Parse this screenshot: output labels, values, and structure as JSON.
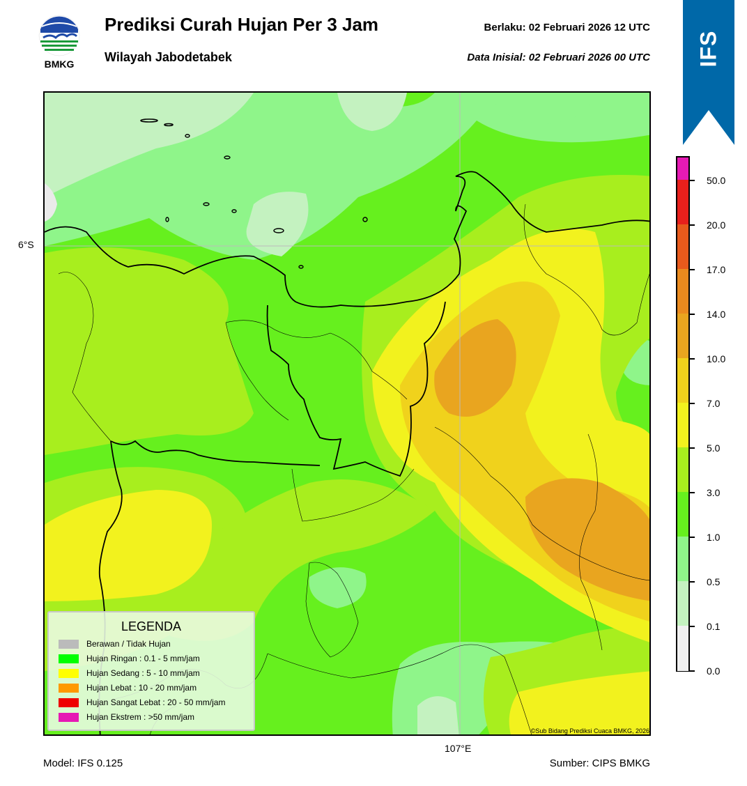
{
  "header": {
    "logo_text": "BMKG",
    "title": "Prediksi Curah Hujan Per 3 Jam",
    "subtitle": "Wilayah Jabodetabek",
    "valid_label": "Berlaku:  02 Februari 2026 12 UTC",
    "init_label": "Data Inisial:  02 Februari 2026 00 UTC"
  },
  "banner": {
    "text": "IFS",
    "color": "#0068a8"
  },
  "map": {
    "lat_label": "6°S",
    "lon_label": "107°E",
    "copyright": "©Sub Bidang Prediksi Cuaca BMKG, 2026"
  },
  "colorbar": {
    "ticks": [
      "50.0",
      "20.0",
      "17.0",
      "14.0",
      "10.0",
      "7.0",
      "5.0",
      "3.0",
      "1.0",
      "0.5",
      "0.1",
      "0.0"
    ],
    "colors_top_to_bottom": [
      "#e61ab4",
      "#e8201c",
      "#e85a1c",
      "#ea8a1e",
      "#e9a51f",
      "#f0d21c",
      "#f2f21e",
      "#a8ee1e",
      "#66f01e",
      "#8ff58a",
      "#c4f2c0",
      "#f0f0f0"
    ]
  },
  "legend": {
    "title": "LEGENDA",
    "items": [
      {
        "label": "Berawan / Tidak Hujan",
        "color": "#bbbbbb"
      },
      {
        "label": "Hujan Ringan : 0.1 - 5 mm/jam",
        "color": "#00ff00"
      },
      {
        "label": "Hujan Sedang : 5 - 10 mm/jam",
        "color": "#ffff00"
      },
      {
        "label": "Hujan Lebat : 10 - 20 mm/jam",
        "color": "#ff9900"
      },
      {
        "label": "Hujan Sangat Lebat : 20 - 50 mm/jam",
        "color": "#ee0000"
      },
      {
        "label": "Hujan Ekstrem : >50 mm/jam",
        "color": "#e619b4"
      }
    ]
  },
  "footer": {
    "model": "Model: IFS 0.125",
    "source": "Sumber: CIPS BMKG"
  }
}
